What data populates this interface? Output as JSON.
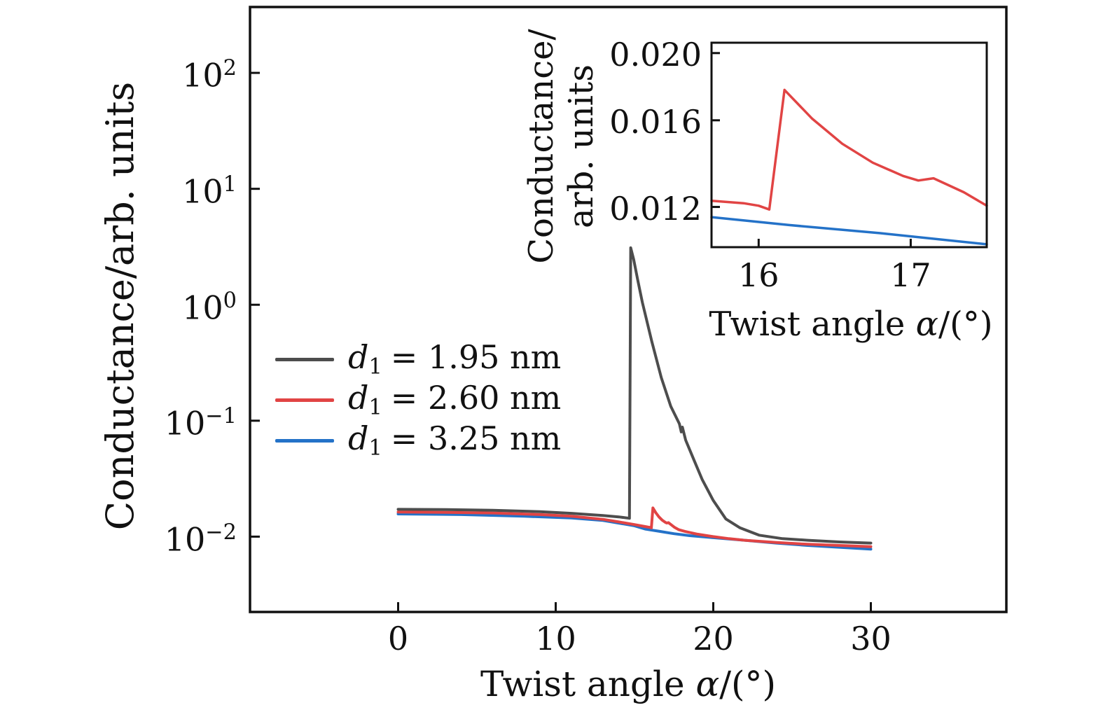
{
  "figure": {
    "background": "#ffffff",
    "frame_color": "#111111",
    "text_color": "#111111"
  },
  "chart_data": [
    {
      "type": "line",
      "role": "main-panel",
      "title": "",
      "xlabel": "Twist angle α/(°)",
      "xlabel_parts": {
        "pre": "Twist angle ",
        "var": "α",
        "post": "/(°)"
      },
      "ylabel": "Conductance/arb. units",
      "xscale": "linear",
      "yscale": "log",
      "xlim": [
        -9.4,
        38.6
      ],
      "ylim": [
        0.00224,
        370
      ],
      "grid": false,
      "xticks": {
        "values": [
          0,
          10,
          20,
          30
        ],
        "labels": [
          "0",
          "10",
          "20",
          "30"
        ]
      },
      "yticks": {
        "values": [
          100,
          10,
          1,
          0.1,
          0.01
        ],
        "labels": [
          {
            "base": "10",
            "sup": "2"
          },
          {
            "base": "10",
            "sup": "1"
          },
          {
            "base": "10",
            "sup": "0"
          },
          {
            "base": "10",
            "sup": "−1"
          },
          {
            "base": "10",
            "sup": "−2"
          }
        ]
      },
      "legend": {
        "position": "center-left",
        "items": [
          {
            "var": "d",
            "sub": "1",
            "value": "= 1.95 nm"
          },
          {
            "var": "d",
            "sub": "1",
            "value": "= 2.60 nm"
          },
          {
            "var": "d",
            "sub": "1",
            "value": "= 3.25 nm"
          }
        ]
      },
      "series": [
        {
          "name": "d₁ = 1.95 nm",
          "color": "#4d4d4d",
          "points": [
            [
              0,
              0.0172
            ],
            [
              3,
              0.0171
            ],
            [
              6,
              0.0169
            ],
            [
              9,
              0.0164
            ],
            [
              11,
              0.0159
            ],
            [
              13,
              0.0152
            ],
            [
              14,
              0.0148
            ],
            [
              14.68,
              0.0144
            ],
            [
              14.76,
              3.1
            ],
            [
              14.95,
              2.45
            ],
            [
              15.2,
              1.65
            ],
            [
              15.5,
              1.05
            ],
            [
              16.1,
              0.48
            ],
            [
              16.7,
              0.235
            ],
            [
              17.3,
              0.133
            ],
            [
              17.85,
              0.094
            ],
            [
              17.97,
              0.08
            ],
            [
              18.04,
              0.088
            ],
            [
              18.25,
              0.068
            ],
            [
              18.8,
              0.045
            ],
            [
              19.3,
              0.031
            ],
            [
              20,
              0.0205
            ],
            [
              20.8,
              0.0142
            ],
            [
              21.7,
              0.0119
            ],
            [
              22.9,
              0.0103
            ],
            [
              24.4,
              0.0096
            ],
            [
              26,
              0.0093
            ],
            [
              28,
              0.009
            ],
            [
              30,
              0.0088
            ]
          ]
        },
        {
          "name": "d₁ = 2.60 nm",
          "color": "#e14444",
          "points": [
            [
              0,
              0.0163
            ],
            [
              3,
              0.0162
            ],
            [
              6,
              0.016
            ],
            [
              9,
              0.0155
            ],
            [
              11,
              0.015
            ],
            [
              13,
              0.0141
            ],
            [
              14,
              0.0134
            ],
            [
              15,
              0.0127
            ],
            [
              15.7,
              0.0122
            ],
            [
              16,
              0.012
            ],
            [
              16.07,
              0.0119
            ],
            [
              16.17,
              0.0177
            ],
            [
              16.35,
              0.0161
            ],
            [
              16.55,
              0.0148
            ],
            [
              16.75,
              0.0139
            ],
            [
              16.95,
              0.0133
            ],
            [
              17.05,
              0.0131
            ],
            [
              17.15,
              0.0132
            ],
            [
              17.35,
              0.0126
            ],
            [
              17.55,
              0.012
            ],
            [
              17.8,
              0.0115
            ],
            [
              18.2,
              0.0111
            ],
            [
              19,
              0.0105
            ],
            [
              20,
              0.01
            ],
            [
              21,
              0.0096
            ],
            [
              22,
              0.0093
            ],
            [
              24,
              0.0089
            ],
            [
              26,
              0.0086
            ],
            [
              28,
              0.0084
            ],
            [
              30,
              0.0082
            ]
          ]
        },
        {
          "name": "d₁ = 3.25 nm",
          "color": "#2472c8",
          "points": [
            [
              0,
              0.0157
            ],
            [
              4,
              0.0155
            ],
            [
              8,
              0.015
            ],
            [
              11,
              0.0145
            ],
            [
              13,
              0.0138
            ],
            [
              15,
              0.0124
            ],
            [
              15.7,
              0.0116
            ],
            [
              16.6,
              0.0111
            ],
            [
              17.5,
              0.0106
            ],
            [
              18.5,
              0.0102
            ],
            [
              20,
              0.0098
            ],
            [
              22,
              0.0093
            ],
            [
              24,
              0.0088
            ],
            [
              26,
              0.0084
            ],
            [
              28,
              0.0081
            ],
            [
              30,
              0.0078
            ]
          ]
        }
      ]
    },
    {
      "type": "line",
      "role": "inset-zoom-panel",
      "title": "",
      "xlabel": "Twist angle α/(°)",
      "xlabel_parts": {
        "pre": "Twist angle ",
        "var": "α",
        "post": "/(°)"
      },
      "ylabel": "Conductance/arb. units",
      "ylabel_lines": [
        "Conductance/",
        "arb. units"
      ],
      "xscale": "linear",
      "yscale": "log",
      "xlim": [
        15.69,
        17.5
      ],
      "ylim": [
        0.0105,
        0.0207
      ],
      "grid": false,
      "xticks": {
        "values": [
          16,
          17
        ],
        "labels": [
          "16",
          "17"
        ]
      },
      "yticks": {
        "values": [
          0.02,
          0.016,
          0.012
        ],
        "labels": [
          "0.020",
          "0.016",
          "0.012"
        ]
      },
      "series": [
        {
          "name": "d₁ = 2.60 nm",
          "color": "#e14444",
          "points": [
            [
              15.69,
              0.01225
            ],
            [
              15.9,
              0.01215
            ],
            [
              16,
              0.01205
            ],
            [
              16.07,
              0.0119
            ],
            [
              16.17,
              0.0177
            ],
            [
              16.35,
              0.0161
            ],
            [
              16.55,
              0.0148
            ],
            [
              16.75,
              0.0139
            ],
            [
              16.95,
              0.0133
            ],
            [
              17.05,
              0.0131
            ],
            [
              17.15,
              0.0132
            ],
            [
              17.35,
              0.0126
            ],
            [
              17.5,
              0.01205
            ]
          ]
        },
        {
          "name": "d₁ = 3.25 nm",
          "color": "#2472c8",
          "points": [
            [
              15.69,
              0.0116
            ],
            [
              16.2,
              0.0113
            ],
            [
              16.8,
              0.011
            ],
            [
              17.5,
              0.0106
            ]
          ]
        }
      ]
    }
  ]
}
